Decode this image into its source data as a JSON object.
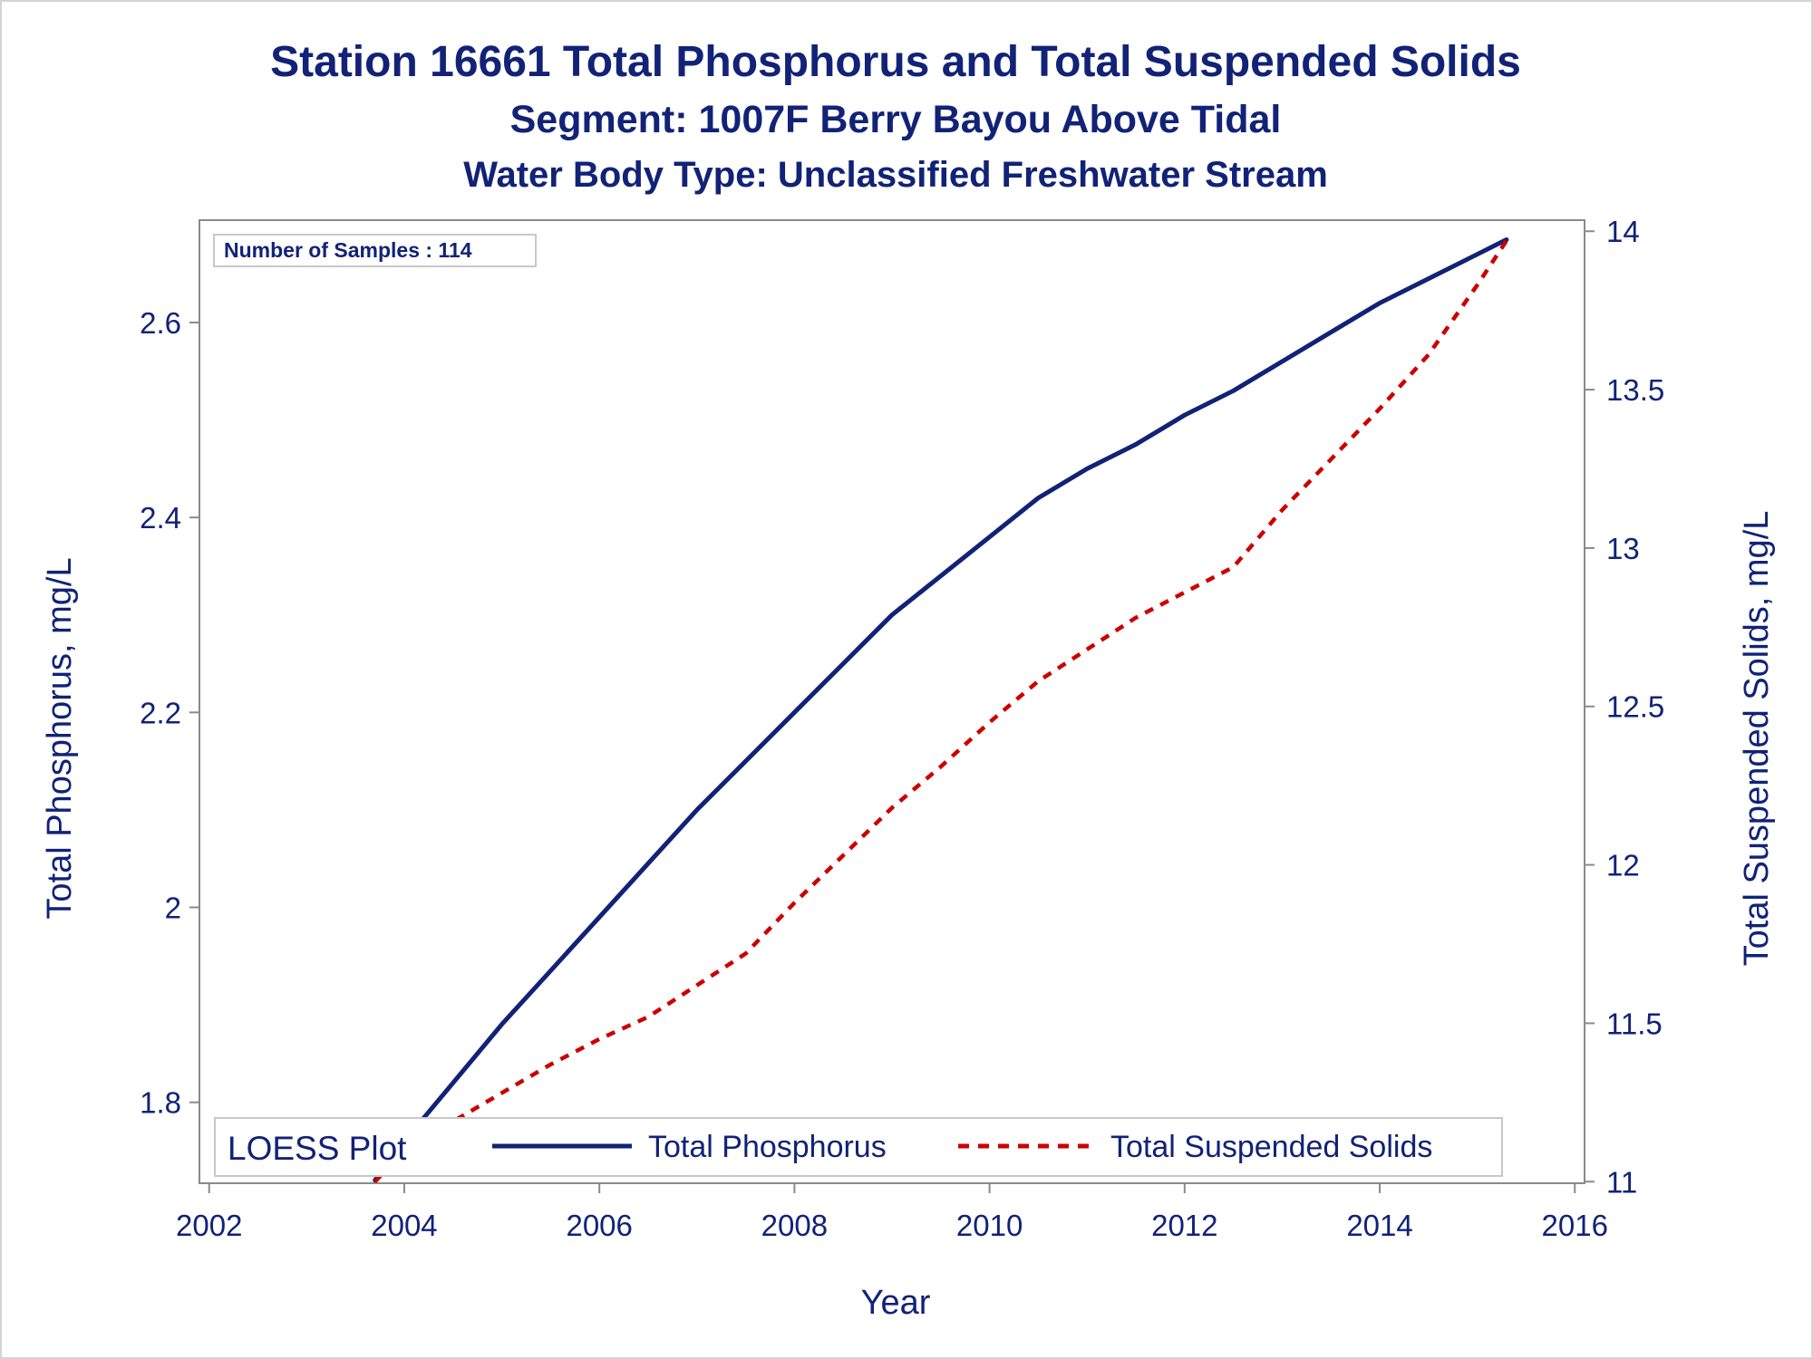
{
  "chart_data": {
    "type": "line",
    "title": "Station 16661  Total Phosphorus and Total Suspended Solids",
    "subtitle": "Segment: 1007F  Berry Bayou Above Tidal",
    "subtitle2": "Water Body Type: Unclassified Freshwater Stream",
    "xlabel": "Year",
    "ylabel": "Total Phosphorus, mg/L",
    "y2label": "Total Suspended Solids, mg/L",
    "xlim": [
      2001.9,
      2016.1
    ],
    "ylim": [
      1.717,
      2.705
    ],
    "y2lim": [
      10.995,
      14.035
    ],
    "x_ticks": [
      "2002",
      "2004",
      "2006",
      "2008",
      "2010",
      "2012",
      "2014",
      "2016"
    ],
    "y_ticks": [
      "1.8",
      "2",
      "2.2",
      "2.4",
      "2.6"
    ],
    "y2_ticks": [
      "11",
      "11.5",
      "12",
      "12.5",
      "13",
      "13.5",
      "14"
    ],
    "inset_note": "Number of Samples : 114",
    "legend": {
      "title": "LOESS Plot",
      "position": "bottom-inside",
      "entries": [
        "Total Phosphorus",
        "Total Suspended Solids"
      ]
    },
    "colors": {
      "phosphorus": "#112277",
      "tss": "#cc0000"
    },
    "series": [
      {
        "name": "Total Phosphorus",
        "axis": "left",
        "style": "solid",
        "x": [
          2003.7,
          2004.0,
          2004.5,
          2005.0,
          2005.5,
          2006.0,
          2006.5,
          2007.0,
          2007.5,
          2008.0,
          2008.5,
          2009.0,
          2009.5,
          2010.0,
          2010.5,
          2011.0,
          2011.5,
          2012.0,
          2012.5,
          2013.0,
          2013.5,
          2014.0,
          2014.5,
          2015.0,
          2015.3
        ],
        "y": [
          1.72,
          1.76,
          1.82,
          1.88,
          1.935,
          1.99,
          2.045,
          2.1,
          2.15,
          2.2,
          2.25,
          2.3,
          2.34,
          2.38,
          2.42,
          2.45,
          2.475,
          2.505,
          2.53,
          2.56,
          2.59,
          2.62,
          2.645,
          2.67,
          2.685
        ]
      },
      {
        "name": "Total Suspended Solids",
        "axis": "right",
        "style": "dashed",
        "x": [
          2003.7,
          2004.0,
          2004.5,
          2005.0,
          2005.5,
          2006.0,
          2006.5,
          2007.0,
          2007.5,
          2008.0,
          2008.5,
          2009.0,
          2009.5,
          2010.0,
          2010.5,
          2011.0,
          2011.5,
          2012.0,
          2012.5,
          2013.0,
          2013.5,
          2014.0,
          2014.5,
          2015.0,
          2015.3
        ],
        "y": [
          11.0,
          11.1,
          11.19,
          11.28,
          11.37,
          11.45,
          11.52,
          11.62,
          11.72,
          11.88,
          12.03,
          12.18,
          12.31,
          12.45,
          12.58,
          12.68,
          12.78,
          12.86,
          12.94,
          13.12,
          13.28,
          13.44,
          13.61,
          13.83,
          13.97
        ]
      }
    ]
  }
}
